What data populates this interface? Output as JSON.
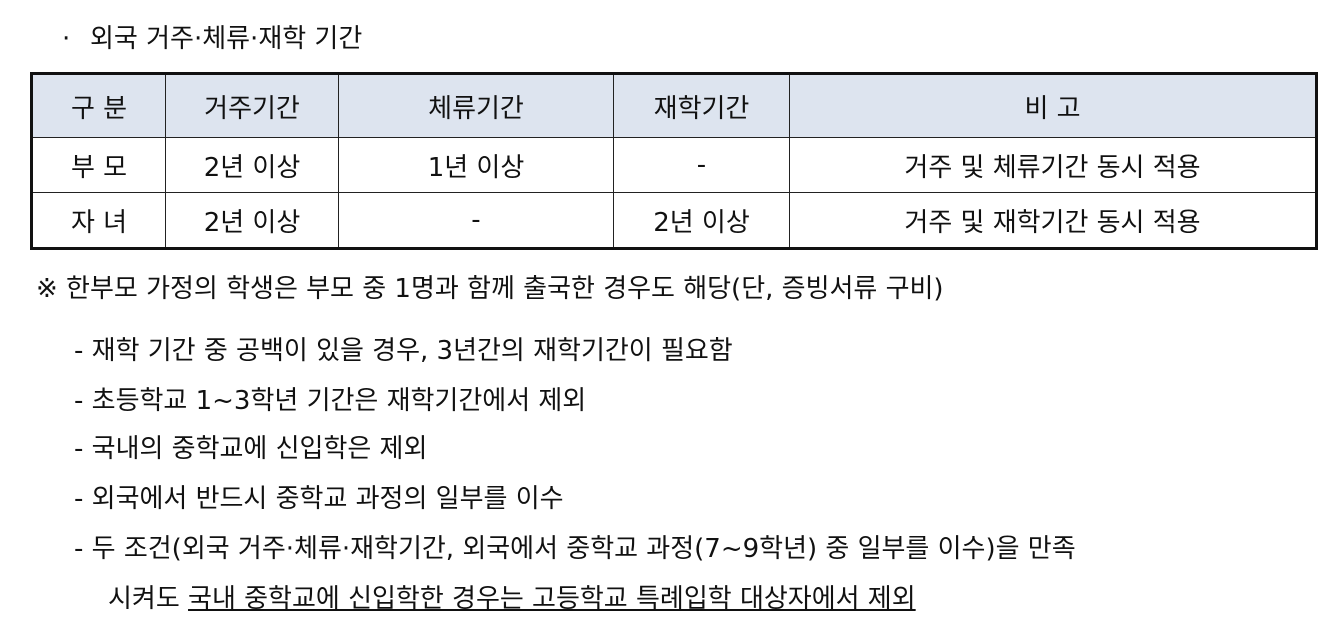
{
  "section_title": "외국 거주·체류·재학 기간",
  "bullet": "·",
  "table": {
    "headers": [
      "구  분",
      "거주기간",
      "체류기간",
      "재학기간",
      "비        고"
    ],
    "rows": [
      [
        "부  모",
        "2년 이상",
        "1년 이상",
        "-",
        "거주 및 체류기간 동시 적용"
      ],
      [
        "자  녀",
        "2년 이상",
        "-",
        "2년 이상",
        "거주 및 재학기간 동시 적용"
      ]
    ],
    "header_bg": "#dde4ef"
  },
  "note": "※ 한부모 가정의 학생은 부모 중 1명과 함께 출국한 경우도 해당(단, 증빙서류 구비)",
  "items": [
    "- 재학 기간 중 공백이 있을 경우, 3년간의 재학기간이 필요함",
    "- 초등학교 1~3학년 기간은 재학기간에서 제외",
    "- 국내의 중학교에 신입학은 제외",
    "- 외국에서 반드시 중학교 과정의 일부를 이수",
    "- 두 조건(외국 거주·체류·재학기간, 외국에서 중학교 과정(7~9학년) 중 일부를 이수)을 만족"
  ],
  "last_line": {
    "prefix": "시켜도 ",
    "underlined": "국내 중학교에 신입학한 경우는 고등학교 특례입학 대상자에서 제외"
  }
}
